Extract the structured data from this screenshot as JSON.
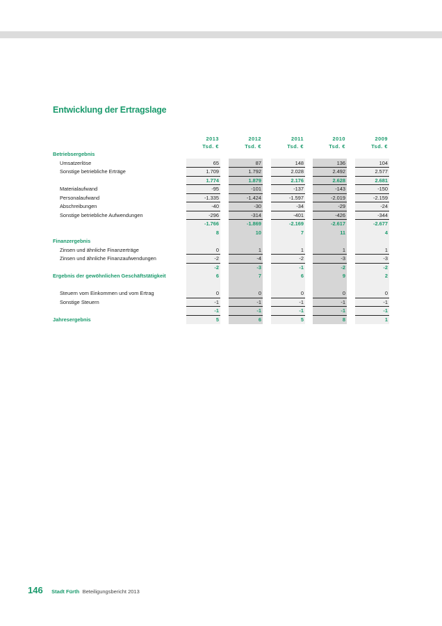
{
  "title": "Entwicklung der Ertragslage",
  "years": [
    "2013",
    "2012",
    "2011",
    "2010",
    "2009"
  ],
  "unit": "Tsd. €",
  "rows": [
    {
      "label": "Betriebsergebnis",
      "section": true,
      "values": null
    },
    {
      "label": "Umsatzerlöse",
      "values": [
        "65",
        "87",
        "148",
        "136",
        "104"
      ],
      "line": true
    },
    {
      "label": "Sonstige betriebliche Erträge",
      "values": [
        "1.709",
        "1.792",
        "2.028",
        "2.492",
        "2.577"
      ],
      "line": true
    },
    {
      "label": "",
      "values": [
        "1.774",
        "1.879",
        "2.176",
        "2.628",
        "2.681"
      ],
      "green": true,
      "line": true
    },
    {
      "label": "Materialaufwand",
      "values": [
        "-95",
        "-101",
        "-137",
        "-143",
        "-150"
      ],
      "line": true
    },
    {
      "label": "Personalaufwand",
      "values": [
        "-1.335",
        "-1.424",
        "-1.597",
        "-2.019",
        "-2.159"
      ],
      "line": true
    },
    {
      "label": "Abschreibungen",
      "values": [
        "-40",
        "-30",
        "-34",
        "-29",
        "-24"
      ],
      "line": true
    },
    {
      "label": "Sonstige betriebliche Aufwendungen",
      "values": [
        "-296",
        "-314",
        "-401",
        "-426",
        "-344"
      ],
      "line": true
    },
    {
      "label": "",
      "values": [
        "-1.766",
        "-1.869",
        "-2.169",
        "-2.617",
        "-2.677"
      ],
      "green": true
    },
    {
      "label": "",
      "values": [
        "8",
        "10",
        "7",
        "11",
        "4"
      ],
      "green": true
    },
    {
      "label": "Finanzergebnis",
      "section": true,
      "values": null
    },
    {
      "label": "Zinsen und ähnliche Finanzerträge",
      "values": [
        "0",
        "1",
        "1",
        "1",
        "1"
      ],
      "line": true
    },
    {
      "label": "Zinsen und ähnliche Finanzaufwendungen",
      "values": [
        "-2",
        "-4",
        "-2",
        "-3",
        "-3"
      ],
      "line": true
    },
    {
      "label": "",
      "values": [
        "-2",
        "-3",
        "-1",
        "-2",
        "-2"
      ],
      "green": true
    },
    {
      "label": "Ergebnis der gewöhnlichen Geschäftstätigkeit",
      "section": true,
      "values": [
        "6",
        "7",
        "6",
        "9",
        "2"
      ],
      "green": true
    },
    {
      "label": "",
      "values": null
    },
    {
      "label": "Steuern vom Einkommen und vom Ertrag",
      "values": [
        "0",
        "0",
        "0",
        "0",
        "0"
      ],
      "line": true
    },
    {
      "label": "Sonstige Steuern",
      "values": [
        "-1",
        "-1",
        "-1",
        "-1",
        "-1"
      ],
      "line": true
    },
    {
      "label": "",
      "values": [
        "-1",
        "-1",
        "-1",
        "-1",
        "-1"
      ],
      "green": true,
      "line": true
    },
    {
      "label": "Jahresergebnis",
      "section": true,
      "values": [
        "5",
        "6",
        "5",
        "8",
        "1"
      ],
      "green": true
    }
  ],
  "footer": {
    "page": "146",
    "city": "Stadt Fürth",
    "report": "Beteiligungsbericht 2013"
  },
  "colors": {
    "accent": "#1a9a6c",
    "shade_light": "#efefef",
    "shade_dark": "#d6d6d6"
  }
}
